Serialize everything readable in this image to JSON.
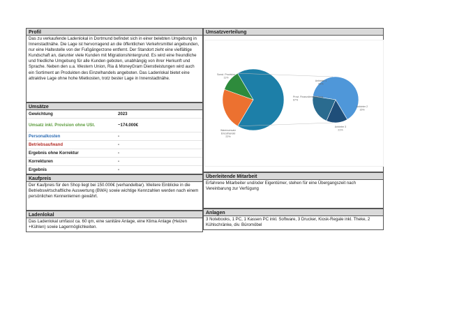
{
  "profil": {
    "title": "Profil",
    "text": "Das zu verkaufende Ladenlokal in Dortmund befindet sich in einer belebten Umgebung in Innenstadtnähe. Die Lage ist hervorragend an die öffentlichen Verkehrsmittel angebunden, nur eine Haltestelle von der Fußgängerzone entfernt. Der Standort zieht eine vielfältige Kundschaft an, darunter viele Kunden mit Migrationshintergrund. Es wird eine freundliche und friedliche Umgebung für alle Kunden geboten, unabhängig von ihrer Herkunft und Sprache. Neben den u.a. Western Union, Ria & MoneyGram Dienstleistungen wird auch ein Sortiment an Produkten des Einzelhandels angeboten. Das Ladenlokal bietet eine attraktive Lage ohne hohe Mietkosten, trotz bester Lage in Innenstadtnähe."
  },
  "umsaetze": {
    "title": "Umsätze",
    "rows": [
      {
        "label": "Gewichtung",
        "value": "2023"
      },
      {
        "label": "Umsatz inkl. Provision ohne USt.",
        "value": "~174.000€"
      },
      {
        "label": "Personalkosten",
        "value": "-"
      },
      {
        "label": "Betriebsaufwand",
        "value": "-"
      },
      {
        "label": "Ergebnis ohne Korrektur",
        "value": "-"
      },
      {
        "label": "Korrekturen",
        "value": "-"
      },
      {
        "label": "Ergebnis",
        "value": "-"
      }
    ]
  },
  "kaufpreis": {
    "title": "Kaufpreis",
    "text": "Der Kaufpreis für den Shop liegt bei 150.000€ (verhandelbar). Weitere Einblicke in die Betriebswirtschaftliche Auswertung (BWA) sowie wichtige Kennzahlen werden nach einem persönlichen Kennenlernen gewährt."
  },
  "ladenlokal": {
    "title": "Ladenlokal",
    "text": "Das Ladenlokal umfasst ca. 60 qm, eine sanitäre Anlage, eine Klima Anlage (Heizen +Kühlen) sowie Lagermöglichkeiten."
  },
  "umsatzverteilung": {
    "title": "Umsatzverteilung"
  },
  "ueberleitende": {
    "title": "Überleitende Mitarbeit",
    "text": "Erfahrene Mitarbeiter und/oder Eigentümer, stehen für eine Übergangszeit nach Vereinbarung zur Verfügung"
  },
  "anlagen": {
    "title": "Anlagen",
    "text": "3 Notebooks, 1 PC, 1 Kassen PC inkl. Software, 3 Drucker, Kiosk-Regale inkl. Theke, 2 Kühlschränke, div. Büromöbel"
  },
  "chart_data": {
    "type": "pie",
    "main": {
      "slices": [
        {
          "label": "Provi. Finanzdienstleistung",
          "percent": "67%",
          "value": 67,
          "color": "#1d7fa8"
        },
        {
          "label": "Warenumsatz Einzelhandel",
          "percent": "22%",
          "value": 22,
          "color": "#ec7130"
        },
        {
          "label": "Sonst. Provision",
          "percent": "11%",
          "value": 11,
          "color": "#2e8b3c"
        }
      ]
    },
    "sub": {
      "slices": [
        {
          "label": "Anbieter 1",
          "percent": "64%",
          "value": 64,
          "color": "#4f97d9"
        },
        {
          "label": "Anbieter 2",
          "percent": "15%",
          "value": 15,
          "color": "#1f4e79"
        },
        {
          "label": "Anbieter 3",
          "percent": "21%",
          "value": 21,
          "color": "#2a6b8f"
        }
      ]
    },
    "colors": {
      "connector": "#bfbfbf",
      "label": "#666666"
    }
  }
}
